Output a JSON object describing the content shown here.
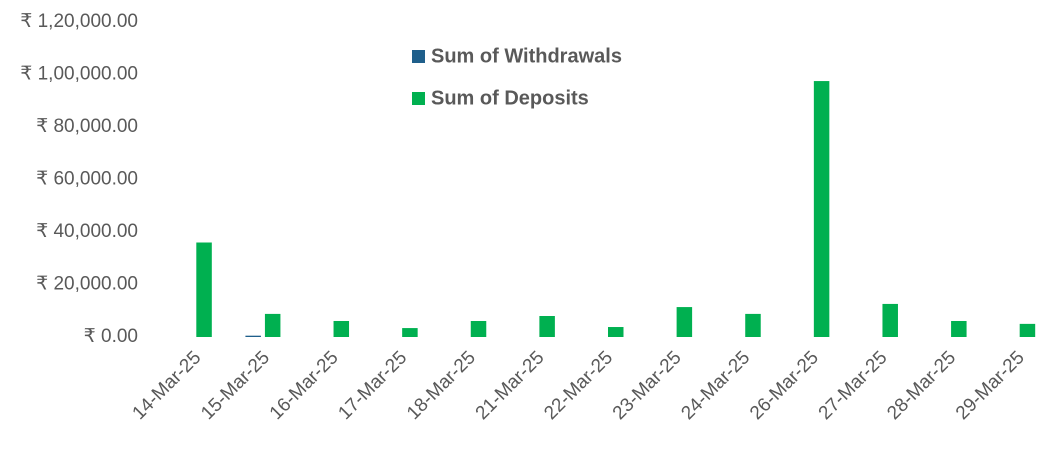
{
  "chart_data": {
    "type": "bar",
    "categories": [
      "14-Mar-25",
      "15-Mar-25",
      "16-Mar-25",
      "17-Mar-25",
      "18-Mar-25",
      "21-Mar-25",
      "22-Mar-25",
      "23-Mar-25",
      "24-Mar-25",
      "26-Mar-25",
      "27-Mar-25",
      "28-Mar-25",
      "29-Mar-25"
    ],
    "series": [
      {
        "name": "Sum of Withdrawals",
        "color": "#1f5f8b",
        "values": [
          null,
          500,
          null,
          null,
          null,
          null,
          null,
          null,
          null,
          null,
          null,
          null,
          null
        ]
      },
      {
        "name": "Sum of Deposits",
        "color": "#00b050",
        "values": [
          36000,
          8800,
          6100,
          3400,
          6100,
          8000,
          3800,
          11400,
          8800,
          97500,
          12600,
          6100,
          5000
        ]
      }
    ],
    "ylim": [
      0,
      120000
    ],
    "yticks": [
      {
        "value": 0,
        "label": "₹ 0.00"
      },
      {
        "value": 20000,
        "label": "₹ 20,000.00"
      },
      {
        "value": 40000,
        "label": "₹ 40,000.00"
      },
      {
        "value": 60000,
        "label": "₹ 60,000.00"
      },
      {
        "value": 80000,
        "label": "₹ 80,000.00"
      },
      {
        "value": 100000,
        "label": "₹ 1,00,000.00"
      },
      {
        "value": 120000,
        "label": "₹ 1,20,000.00"
      }
    ],
    "grid": false,
    "legend": "top"
  }
}
